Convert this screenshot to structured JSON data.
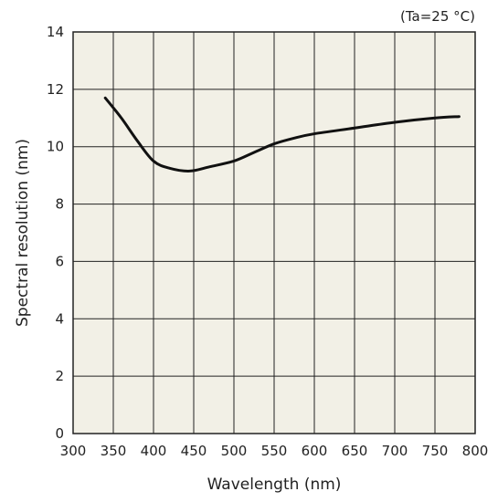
{
  "chart_data": {
    "type": "line",
    "xlabel": "Wavelength (nm)",
    "ylabel": "Spectral resolution (nm)",
    "annotation": "(Ta=25 °C)",
    "xlim": [
      300,
      800
    ],
    "ylim": [
      0,
      14
    ],
    "xticks": [
      300,
      350,
      400,
      450,
      500,
      550,
      600,
      650,
      700,
      750,
      800
    ],
    "yticks": [
      0,
      2,
      4,
      6,
      8,
      10,
      12,
      14
    ],
    "grid": true,
    "plot_background": "#f2f0e6",
    "line_color": "#111111",
    "series": [
      {
        "x": [
          340,
          360,
          380,
          400,
          420,
          445,
          470,
          500,
          525,
          550,
          575,
          600,
          650,
          700,
          750,
          780
        ],
        "values": [
          11.7,
          11.0,
          10.2,
          9.5,
          9.25,
          9.15,
          9.3,
          9.5,
          9.8,
          10.1,
          10.3,
          10.45,
          10.65,
          10.85,
          11.0,
          11.05
        ]
      }
    ]
  }
}
